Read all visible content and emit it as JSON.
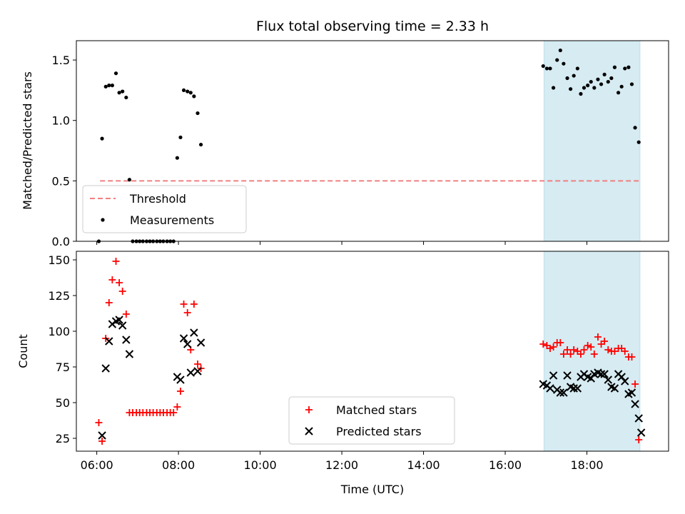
{
  "chart_data": [
    {
      "type": "scatter",
      "title": "Flux total observing time = 2.33 h",
      "ylabel": "Matched/Predicted stars",
      "xlabel": "",
      "x_unit": "hours (UTC)",
      "xlim": [
        5.5,
        20.0
      ],
      "ylim": [
        0,
        1.66
      ],
      "yticks": [
        "0.0",
        "0.5",
        "1.0",
        "1.5"
      ],
      "grid": false,
      "legend_position": "lower-left",
      "highlight_span": {
        "x": [
          16.95,
          19.3
        ],
        "color": "#add8e6"
      },
      "threshold": {
        "name": "Threshold",
        "y": 0.5,
        "x": [
          6.08,
          19.33
        ],
        "color": "#f08080",
        "style": "dashed"
      },
      "series": [
        {
          "name": "Measurements",
          "color": "#000000",
          "marker": "dot",
          "points": [
            [
              6.05,
              0.0
            ],
            [
              6.13,
              0.85
            ],
            [
              6.22,
              1.28
            ],
            [
              6.3,
              1.29
            ],
            [
              6.38,
              1.29
            ],
            [
              6.47,
              1.39
            ],
            [
              6.55,
              1.23
            ],
            [
              6.63,
              1.24
            ],
            [
              6.72,
              1.19
            ],
            [
              6.8,
              0.51
            ],
            [
              6.88,
              0.0
            ],
            [
              6.97,
              0.0
            ],
            [
              7.05,
              0.0
            ],
            [
              7.13,
              0.0
            ],
            [
              7.22,
              0.0
            ],
            [
              7.3,
              0.0
            ],
            [
              7.38,
              0.0
            ],
            [
              7.47,
              0.0
            ],
            [
              7.55,
              0.0
            ],
            [
              7.63,
              0.0
            ],
            [
              7.72,
              0.0
            ],
            [
              7.8,
              0.0
            ],
            [
              7.88,
              0.0
            ],
            [
              7.97,
              0.69
            ],
            [
              8.05,
              0.86
            ],
            [
              8.13,
              1.25
            ],
            [
              8.22,
              1.24
            ],
            [
              8.3,
              1.23
            ],
            [
              8.38,
              1.2
            ],
            [
              8.47,
              1.06
            ],
            [
              8.55,
              0.8
            ],
            [
              16.93,
              1.45
            ],
            [
              17.02,
              1.43
            ],
            [
              17.1,
              1.43
            ],
            [
              17.18,
              1.27
            ],
            [
              17.27,
              1.5
            ],
            [
              17.35,
              1.58
            ],
            [
              17.43,
              1.47
            ],
            [
              17.52,
              1.35
            ],
            [
              17.6,
              1.26
            ],
            [
              17.68,
              1.37
            ],
            [
              17.77,
              1.43
            ],
            [
              17.85,
              1.22
            ],
            [
              17.93,
              1.27
            ],
            [
              18.02,
              1.29
            ],
            [
              18.1,
              1.32
            ],
            [
              18.18,
              1.27
            ],
            [
              18.27,
              1.34
            ],
            [
              18.35,
              1.3
            ],
            [
              18.43,
              1.38
            ],
            [
              18.52,
              1.32
            ],
            [
              18.6,
              1.35
            ],
            [
              18.68,
              1.44
            ],
            [
              18.77,
              1.23
            ],
            [
              18.85,
              1.28
            ],
            [
              18.93,
              1.43
            ],
            [
              19.02,
              1.44
            ],
            [
              19.1,
              1.3
            ],
            [
              19.18,
              0.94
            ],
            [
              19.27,
              0.82
            ]
          ]
        }
      ]
    },
    {
      "type": "scatter",
      "title": "",
      "xlabel": "Time (UTC)",
      "ylabel": "Count",
      "x_unit": "hours (UTC)",
      "xlim": [
        5.5,
        20.0
      ],
      "ylim": [
        16,
        156
      ],
      "yticks": [
        "25",
        "50",
        "75",
        "100",
        "125",
        "150"
      ],
      "xticks": [
        "06:00",
        "08:00",
        "10:00",
        "12:00",
        "14:00",
        "16:00",
        "18:00"
      ],
      "grid": false,
      "legend_position": "lower-center",
      "highlight_span": {
        "x": [
          16.95,
          19.3
        ],
        "color": "#add8e6"
      },
      "series": [
        {
          "name": "Matched stars",
          "color": "#ff0000",
          "marker": "plus",
          "points": [
            [
              6.05,
              36
            ],
            [
              6.13,
              23
            ],
            [
              6.22,
              95
            ],
            [
              6.3,
              120
            ],
            [
              6.38,
              136
            ],
            [
              6.47,
              149
            ],
            [
              6.55,
              134
            ],
            [
              6.63,
              128
            ],
            [
              6.72,
              112
            ],
            [
              6.8,
              43
            ],
            [
              6.88,
              43
            ],
            [
              6.97,
              43
            ],
            [
              7.05,
              43
            ],
            [
              7.13,
              43
            ],
            [
              7.22,
              43
            ],
            [
              7.3,
              43
            ],
            [
              7.38,
              43
            ],
            [
              7.47,
              43
            ],
            [
              7.55,
              43
            ],
            [
              7.63,
              43
            ],
            [
              7.72,
              43
            ],
            [
              7.8,
              43
            ],
            [
              7.88,
              43
            ],
            [
              7.97,
              47
            ],
            [
              8.05,
              58
            ],
            [
              8.13,
              119
            ],
            [
              8.22,
              113
            ],
            [
              8.3,
              87
            ],
            [
              8.38,
              119
            ],
            [
              8.47,
              77
            ],
            [
              8.55,
              74
            ],
            [
              16.93,
              91
            ],
            [
              17.02,
              90
            ],
            [
              17.1,
              88
            ],
            [
              17.18,
              89
            ],
            [
              17.27,
              92
            ],
            [
              17.35,
              92
            ],
            [
              17.43,
              84
            ],
            [
              17.52,
              87
            ],
            [
              17.6,
              84
            ],
            [
              17.68,
              87
            ],
            [
              17.77,
              86
            ],
            [
              17.85,
              84
            ],
            [
              17.93,
              87
            ],
            [
              18.02,
              90
            ],
            [
              18.1,
              89
            ],
            [
              18.18,
              84
            ],
            [
              18.27,
              96
            ],
            [
              18.35,
              91
            ],
            [
              18.43,
              93
            ],
            [
              18.52,
              87
            ],
            [
              18.6,
              86
            ],
            [
              18.68,
              86
            ],
            [
              18.77,
              88
            ],
            [
              18.85,
              88
            ],
            [
              18.93,
              86
            ],
            [
              19.02,
              82
            ],
            [
              19.1,
              82
            ],
            [
              19.18,
              63
            ],
            [
              19.27,
              24
            ]
          ]
        },
        {
          "name": "Predicted stars",
          "color": "#000000",
          "marker": "x",
          "points": [
            [
              6.13,
              27
            ],
            [
              6.22,
              74
            ],
            [
              6.3,
              93
            ],
            [
              6.38,
              105
            ],
            [
              6.47,
              107
            ],
            [
              6.55,
              108
            ],
            [
              6.63,
              104
            ],
            [
              6.72,
              94
            ],
            [
              6.8,
              84
            ],
            [
              7.97,
              68
            ],
            [
              8.05,
              66
            ],
            [
              8.13,
              95
            ],
            [
              8.22,
              91
            ],
            [
              8.3,
              71
            ],
            [
              8.38,
              99
            ],
            [
              8.47,
              72
            ],
            [
              8.55,
              92
            ],
            [
              16.93,
              63
            ],
            [
              17.02,
              62
            ],
            [
              17.1,
              60
            ],
            [
              17.18,
              69
            ],
            [
              17.27,
              59
            ],
            [
              17.35,
              57
            ],
            [
              17.43,
              57
            ],
            [
              17.52,
              69
            ],
            [
              17.6,
              61
            ],
            [
              17.68,
              60
            ],
            [
              17.77,
              60
            ],
            [
              17.85,
              68
            ],
            [
              17.93,
              70
            ],
            [
              18.02,
              68
            ],
            [
              18.1,
              67
            ],
            [
              18.18,
              70
            ],
            [
              18.27,
              71
            ],
            [
              18.35,
              70
            ],
            [
              18.43,
              70
            ],
            [
              18.52,
              66
            ],
            [
              18.6,
              61
            ],
            [
              18.68,
              60
            ],
            [
              18.77,
              70
            ],
            [
              18.85,
              68
            ],
            [
              18.93,
              65
            ],
            [
              19.02,
              56
            ],
            [
              19.1,
              57
            ],
            [
              19.18,
              49
            ],
            [
              19.27,
              39
            ],
            [
              19.33,
              29
            ]
          ]
        }
      ]
    }
  ]
}
